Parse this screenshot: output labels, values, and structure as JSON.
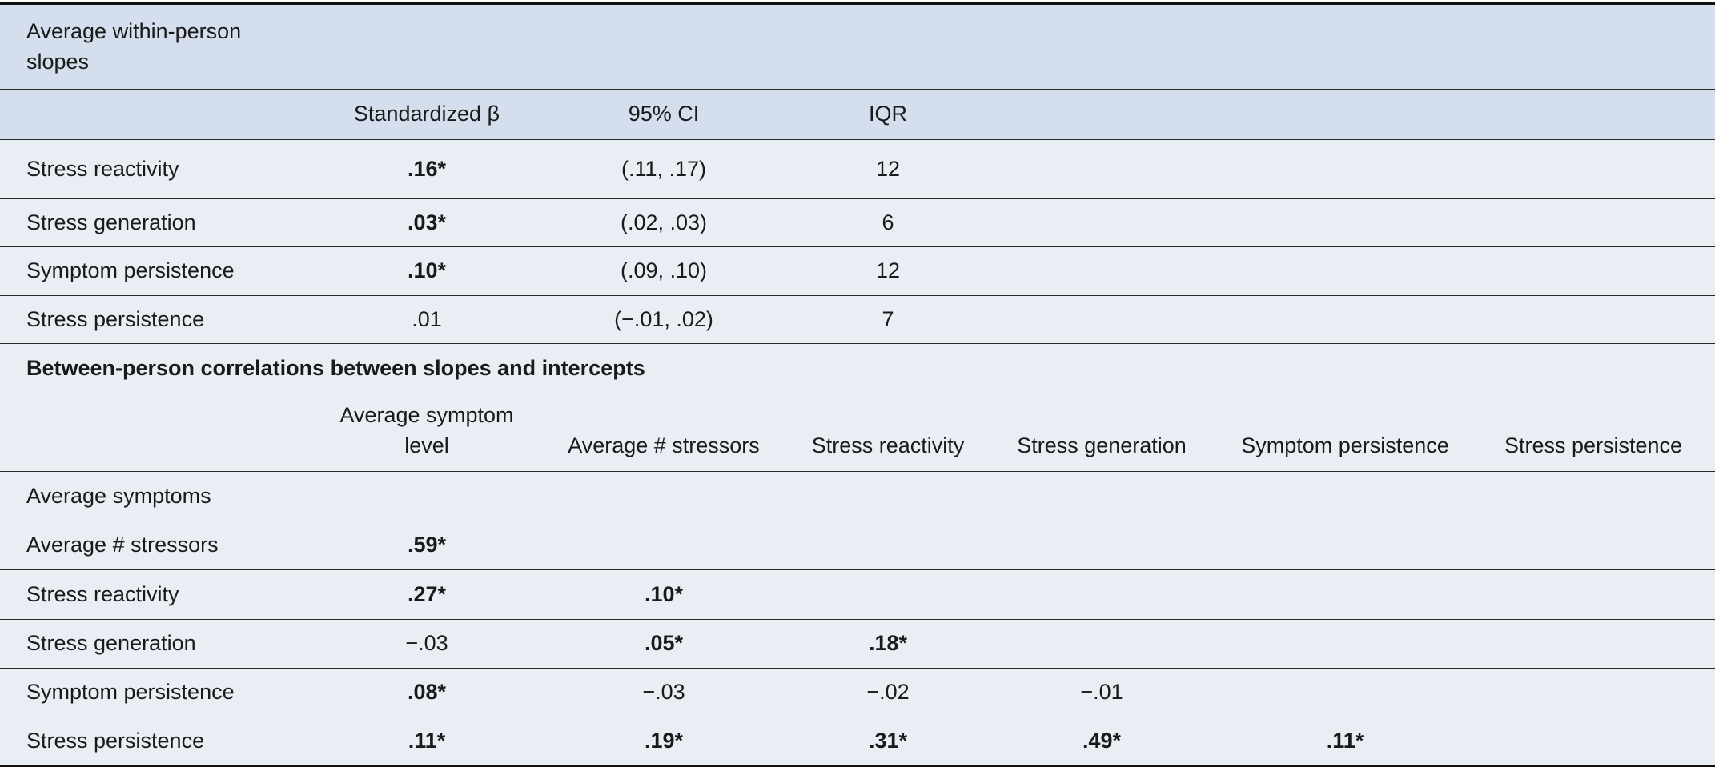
{
  "section1": {
    "title": "Average within-person slopes",
    "columns": [
      "Standardized β",
      "95% CI",
      "IQR"
    ],
    "rows": [
      [
        "Stress reactivity",
        ".16*",
        "(.11, .17)",
        "12"
      ],
      [
        "Stress generation",
        ".03*",
        "(.02, .03)",
        "6"
      ],
      [
        "Symptom persistence",
        ".10*",
        "(.09, .10)",
        "12"
      ],
      [
        "Stress persistence",
        ".01",
        "(−.01, .02)",
        "7"
      ]
    ]
  },
  "section2": {
    "title": "Between-person correlations between slopes and intercepts",
    "columns": [
      "Average symptom level",
      "Average # stressors",
      "Stress reactivity",
      "Stress generation",
      "Symptom persistence",
      "Stress persistence"
    ],
    "rows": [
      [
        "Average symptoms"
      ],
      [
        "Average # stressors",
        ".59*"
      ],
      [
        "Stress reactivity",
        ".27*",
        ".10*"
      ],
      [
        "Stress generation",
        "−.03",
        ".05*",
        ".18*"
      ],
      [
        "Symptom persistence",
        ".08*",
        "−.03",
        "−.02",
        "−.01"
      ],
      [
        "Stress persistence",
        ".11*",
        ".19*",
        ".31*",
        ".49*",
        ".11*"
      ]
    ]
  }
}
